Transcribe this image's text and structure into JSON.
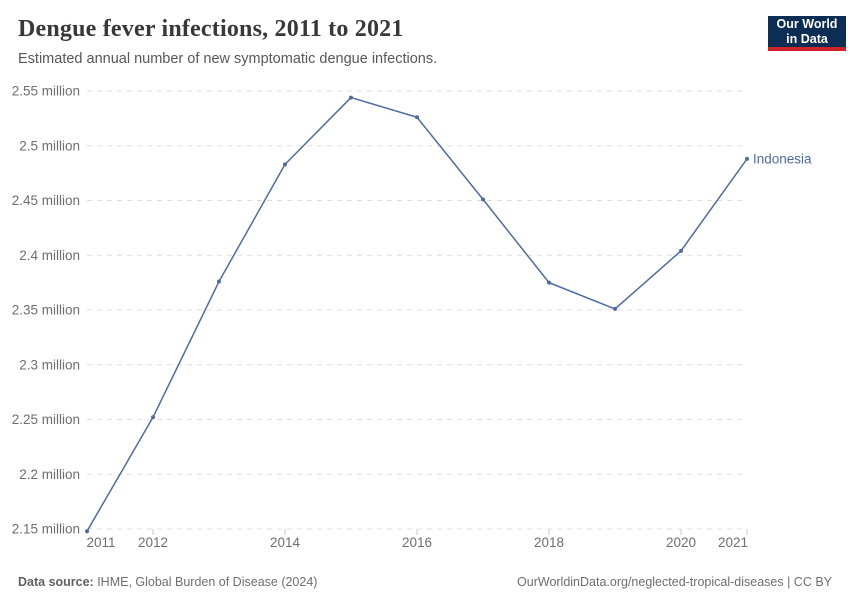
{
  "header": {
    "title": "Dengue fever infections, 2011 to 2021",
    "subtitle": "Estimated annual number of new symptomatic dengue infections.",
    "logo": {
      "line1": "Our World",
      "line2": "in Data",
      "bg_color": "#0d2e54",
      "bar_color": "#cf2229"
    }
  },
  "footer": {
    "datasource_label": "Data source:",
    "datasource_value": " IHME, Global Burden of Disease (2024)",
    "attribution": "OurWorldinData.org/neglected-tropical-diseases | CC BY"
  },
  "chart_data": {
    "type": "line",
    "title": "Dengue fever infections, 2011 to 2021",
    "xlabel": "",
    "ylabel": "",
    "unit": "million infections",
    "xlim": [
      2011,
      2021
    ],
    "ylim_millions": [
      2.15,
      2.55
    ],
    "grid": {
      "style": "dashed-horizontal",
      "color": "#dddddd"
    },
    "axis_text_color": "#6e6e6e",
    "tick_mark_color": "#c8c8c8",
    "legend_position": "end-of-line-label",
    "x": [
      2011,
      2012,
      2013,
      2014,
      2015,
      2016,
      2017,
      2018,
      2019,
      2020,
      2021
    ],
    "series": [
      {
        "name": "Indonesia",
        "color": "#4d6ba3",
        "values_millions": [
          2.148,
          2.252,
          2.376,
          2.483,
          2.544,
          2.526,
          2.451,
          2.375,
          2.351,
          2.404,
          2.488
        ]
      }
    ],
    "y_ticks": [
      {
        "value": 2.15,
        "label": "2.15 million"
      },
      {
        "value": 2.2,
        "label": "2.2 million"
      },
      {
        "value": 2.25,
        "label": "2.25 million"
      },
      {
        "value": 2.3,
        "label": "2.3 million"
      },
      {
        "value": 2.35,
        "label": "2.35 million"
      },
      {
        "value": 2.4,
        "label": "2.4 million"
      },
      {
        "value": 2.45,
        "label": "2.45 million"
      },
      {
        "value": 2.5,
        "label": "2.5 million"
      },
      {
        "value": 2.55,
        "label": "2.55 million"
      }
    ],
    "x_ticks": [
      {
        "year": 2011,
        "label": "2011",
        "tick": false,
        "label_dx": 14
      },
      {
        "year": 2012,
        "label": "2012",
        "tick": true,
        "label_dx": 0
      },
      {
        "year": 2014,
        "label": "2014",
        "tick": true,
        "label_dx": 0
      },
      {
        "year": 2016,
        "label": "2016",
        "tick": true,
        "label_dx": 0
      },
      {
        "year": 2018,
        "label": "2018",
        "tick": true,
        "label_dx": 0
      },
      {
        "year": 2020,
        "label": "2020",
        "tick": true,
        "label_dx": 0
      },
      {
        "year": 2021,
        "label": "2021",
        "tick": true,
        "label_dx": -14
      }
    ]
  }
}
